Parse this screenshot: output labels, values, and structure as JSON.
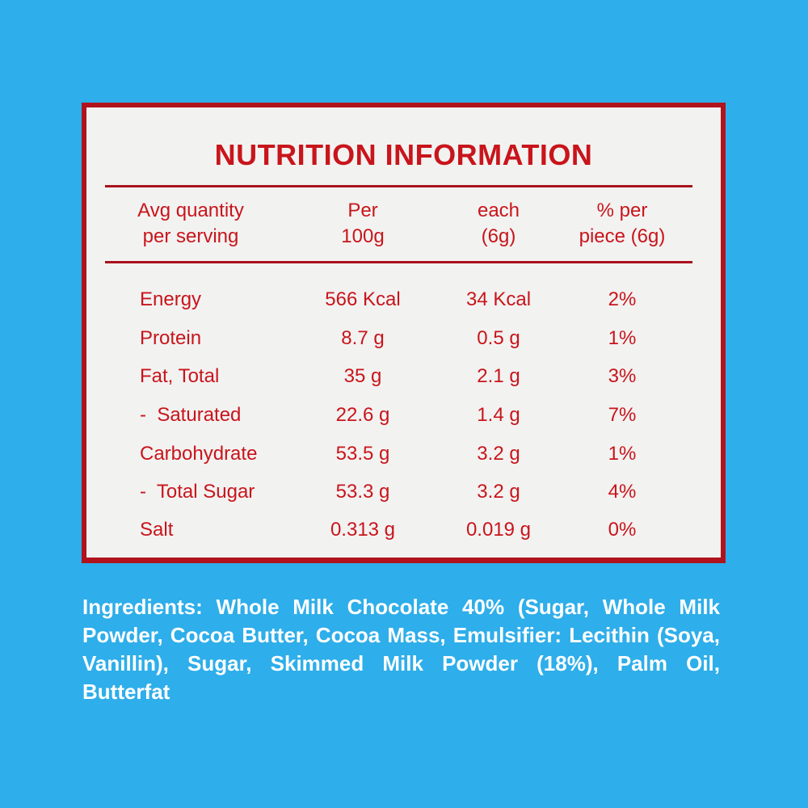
{
  "title": "NUTRITION INFORMATION",
  "headers": {
    "label": "Avg quantity\nper serving",
    "per100": "Per\n100g",
    "each": "each\n(6g)",
    "percent": "% per\npiece (6g)"
  },
  "rows": [
    {
      "label": "Energy",
      "per100": "566 Kcal",
      "each": "34 Kcal",
      "percent": "2%"
    },
    {
      "label": "Protein",
      "per100": "8.7 g",
      "each": "0.5 g",
      "percent": "1%"
    },
    {
      "label": "Fat, Total",
      "per100": "35 g",
      "each": "2.1 g",
      "percent": "3%"
    },
    {
      "label": "-  Saturated",
      "per100": "22.6 g",
      "each": "1.4 g",
      "percent": "7%"
    },
    {
      "label": "Carbohydrate",
      "per100": "53.5 g",
      "each": "3.2 g",
      "percent": "1%"
    },
    {
      "label": "-  Total Sugar",
      "per100": "53.3 g",
      "each": "3.2 g",
      "percent": "4%"
    },
    {
      "label": "Salt",
      "per100": "0.313 g",
      "each": "0.019 g",
      "percent": "0%"
    }
  ],
  "ingredients": "Ingredients: Whole Milk Chocolate 40% (Sugar, Whole Milk Powder, Cocoa Butter, Cocoa Mass, Emulsifier: Lecithin (Soya, Vanillin), Sugar, Skimmed Milk Powder (18%), Palm Oil, Butterfat",
  "colors": {
    "background": "#2eaeea",
    "panel": "#f2f2f1",
    "accent": "#c8151b",
    "border": "#b0131c"
  }
}
